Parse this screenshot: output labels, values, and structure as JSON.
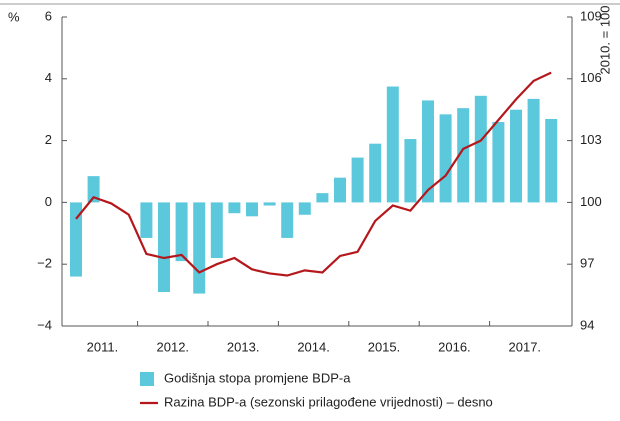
{
  "chart_data": {
    "type": "bar_line",
    "y_unit": "%",
    "y2_unit": "2010. = 100",
    "categories": [
      null,
      null,
      null,
      null,
      null,
      null,
      null,
      null,
      null,
      null,
      null,
      null,
      null,
      null,
      null,
      null,
      null,
      null,
      null,
      null,
      null,
      null,
      null,
      null,
      null,
      null,
      null,
      null
    ],
    "year_labels": [
      "2011.",
      "2012.",
      "2013.",
      "2014.",
      "2015.",
      "2016.",
      "2017."
    ],
    "series": [
      {
        "name": "Godišnja stopa promjene BDP-a",
        "type": "bar",
        "color": "#5bc8dc",
        "values": [
          -2.4,
          0.85,
          0.0,
          0.0,
          -1.15,
          -2.9,
          -1.9,
          -2.95,
          -1.8,
          -0.35,
          -0.45,
          -0.1,
          -1.15,
          -0.4,
          0.3,
          0.8,
          1.45,
          1.9,
          3.75,
          2.05,
          3.3,
          2.85,
          3.05,
          3.45,
          2.6,
          3.0,
          3.35,
          2.7
        ]
      },
      {
        "name": "Razina BDP-a (sezonski prilagođene vrijednosti) – desno",
        "type": "line",
        "axis": "y2",
        "color": "#b5181c",
        "values": [
          99.2,
          100.25,
          99.95,
          99.4,
          97.5,
          97.3,
          97.45,
          96.6,
          97.0,
          97.3,
          96.75,
          96.55,
          96.45,
          96.7,
          96.6,
          97.4,
          97.6,
          99.1,
          99.85,
          99.6,
          100.6,
          101.3,
          102.6,
          103.0,
          104.0,
          105.0,
          105.9,
          106.3
        ]
      }
    ],
    "ylim": [
      -4,
      6
    ],
    "yticks": [
      {
        "value": -4,
        "label": "−4"
      },
      {
        "value": -2,
        "label": "−2"
      },
      0,
      2,
      4,
      6
    ],
    "y2lim": [
      94,
      109
    ],
    "y2ticks": [
      94,
      97,
      100,
      103,
      106,
      109
    ]
  }
}
